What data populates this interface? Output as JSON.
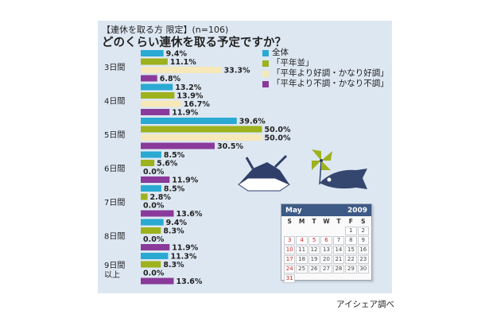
{
  "header": {
    "subtitle": "【連休を取る方 限定】(n=106)",
    "title": "どのくらい連休を取る予定ですか？"
  },
  "footer": {
    "credit": "アイシェア調べ"
  },
  "colors": {
    "panel": "#dde7f2",
    "overall": "#2aa9d2",
    "normal": "#9db21c",
    "good": "#f6e8b8",
    "bad": "#8a3a9a"
  },
  "chart_data": {
    "type": "bar",
    "orientation": "horizontal",
    "categories": [
      "3日間",
      "4日間",
      "5日間",
      "6日間",
      "7日間",
      "8日間",
      "9日間\n以上"
    ],
    "series": [
      {
        "name": "全体",
        "color": "#2aa9d2",
        "values": [
          9.4,
          13.2,
          39.6,
          8.5,
          8.5,
          9.4,
          11.3
        ]
      },
      {
        "name": "「平年並」",
        "color": "#9db21c",
        "values": [
          11.1,
          13.9,
          50.0,
          5.6,
          2.8,
          8.3,
          8.3
        ]
      },
      {
        "name": "「平年より好調・かなり好調」",
        "color": "#f6e8b8",
        "values": [
          33.3,
          16.7,
          50.0,
          0.0,
          0.0,
          0.0,
          0.0
        ]
      },
      {
        "name": "「平年より不調・かなり不調」",
        "color": "#8a3a9a",
        "values": [
          6.8,
          11.9,
          30.5,
          11.9,
          13.6,
          11.9,
          13.6
        ]
      }
    ],
    "unit": "%",
    "xlim": [
      0,
      50
    ],
    "grid": false,
    "legend_position": "top-right"
  },
  "calendar": {
    "month": "May",
    "year": "2009",
    "days_of_week": [
      "S",
      "M",
      "T",
      "W",
      "T",
      "F",
      "S"
    ],
    "weeks": [
      [
        "",
        "",
        "",
        "",
        "",
        "1",
        "2"
      ],
      [
        "3",
        "4",
        "5",
        "6",
        "7",
        "8",
        "9"
      ],
      [
        "10",
        "11",
        "12",
        "13",
        "14",
        "15",
        "16"
      ],
      [
        "17",
        "18",
        "19",
        "20",
        "21",
        "22",
        "23"
      ],
      [
        "24",
        "25",
        "26",
        "27",
        "28",
        "29",
        "30"
      ],
      [
        "31",
        "",
        "",
        "",
        "",
        "",
        ""
      ]
    ],
    "red_days": [
      "3",
      "4",
      "5",
      "6",
      "10",
      "17",
      "24",
      "31"
    ]
  }
}
